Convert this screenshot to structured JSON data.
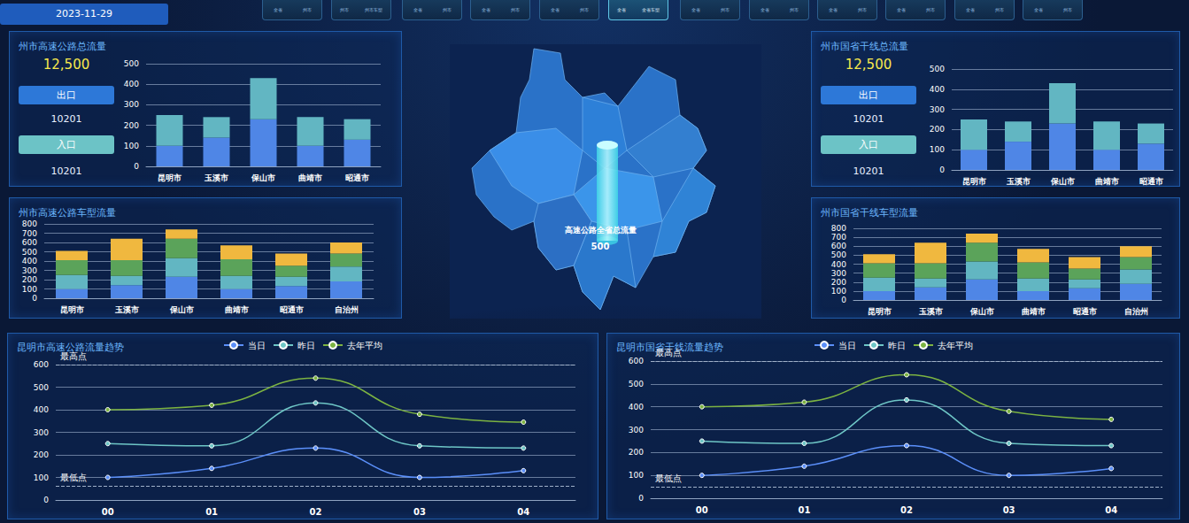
{
  "header": {
    "date": "2023-11-29",
    "tabs": [
      [
        "全省",
        "州市"
      ],
      [
        "州市",
        "州市车型"
      ],
      [
        "全省",
        "州市"
      ],
      [
        "全省",
        "州市"
      ],
      [
        "全省",
        "州市"
      ],
      [
        "全省",
        "全省车型"
      ],
      [
        "全省",
        "州市"
      ],
      [
        "全省",
        "州市"
      ],
      [
        "全省",
        "州市"
      ],
      [
        "全省",
        "州市"
      ],
      [
        "全省",
        "州市"
      ],
      [
        "全省",
        "州市"
      ]
    ],
    "active_tab": 5
  },
  "summaries": [
    {
      "total": {
        "value": 12500,
        "label": "12,500"
      },
      "items": [
        {
          "label": "出口",
          "value": 10201
        },
        {
          "label": "入口",
          "value": 10201
        }
      ]
    },
    {
      "total": {
        "value": 12500,
        "label": "12,500"
      },
      "items": [
        {
          "label": "出口",
          "value": 10201
        },
        {
          "label": "入口",
          "value": 10201
        }
      ]
    }
  ],
  "map": {
    "label": "高速公路全省总流量",
    "value": 500
  },
  "chart_data": [
    {
      "type": "bar",
      "title": "州市高速公路总流量",
      "stacked": true,
      "grid": true,
      "categories": [
        "昆明市",
        "玉溪市",
        "保山市",
        "曲靖市",
        "昭通市"
      ],
      "series": [
        {
          "color": "#4f86e6",
          "values": [
            100,
            140,
            230,
            100,
            130
          ]
        },
        {
          "color": "#62b6c2",
          "values": [
            150,
            100,
            200,
            140,
            100
          ]
        }
      ],
      "ylim": [
        0,
        500
      ],
      "yticks": [
        0,
        100,
        200,
        300,
        400,
        500
      ]
    },
    {
      "type": "bar",
      "title": "州市国省干线总流量",
      "stacked": true,
      "grid": true,
      "categories": [
        "昆明市",
        "玉溪市",
        "保山市",
        "曲靖市",
        "昭通市"
      ],
      "series": [
        {
          "color": "#4f86e6",
          "values": [
            100,
            140,
            230,
            100,
            130
          ]
        },
        {
          "color": "#62b6c2",
          "values": [
            150,
            100,
            200,
            140,
            100
          ]
        }
      ],
      "ylim": [
        0,
        500
      ],
      "yticks": [
        0,
        100,
        200,
        300,
        400,
        500
      ]
    },
    {
      "type": "bar",
      "title": "州市高速公路车型流量",
      "stacked": true,
      "grid": true,
      "categories": [
        "昆明市",
        "玉溪市",
        "保山市",
        "曲靖市",
        "昭通市",
        "自治州"
      ],
      "series": [
        {
          "color": "#4f86e6",
          "values": [
            100,
            140,
            230,
            100,
            130,
            180
          ]
        },
        {
          "color": "#62b6c2",
          "values": [
            150,
            100,
            200,
            140,
            100,
            160
          ]
        },
        {
          "color": "#5ba35a",
          "values": [
            160,
            170,
            210,
            180,
            120,
            140
          ]
        },
        {
          "color": "#f0b83f",
          "values": [
            100,
            230,
            100,
            150,
            130,
            120
          ]
        }
      ],
      "ylim": [
        0,
        800
      ],
      "yticks": [
        0,
        100,
        200,
        300,
        400,
        500,
        600,
        700,
        800
      ]
    },
    {
      "type": "bar",
      "title": "州市国省干线车型流量",
      "stacked": true,
      "grid": true,
      "categories": [
        "昆明市",
        "玉溪市",
        "保山市",
        "曲靖市",
        "昭通市",
        "自治州"
      ],
      "series": [
        {
          "color": "#4f86e6",
          "values": [
            100,
            140,
            230,
            100,
            130,
            180
          ]
        },
        {
          "color": "#62b6c2",
          "values": [
            150,
            100,
            200,
            140,
            100,
            160
          ]
        },
        {
          "color": "#5ba35a",
          "values": [
            160,
            170,
            210,
            180,
            120,
            140
          ]
        },
        {
          "color": "#f0b83f",
          "values": [
            100,
            230,
            100,
            150,
            130,
            120
          ]
        }
      ],
      "ylim": [
        0,
        800
      ],
      "yticks": [
        0,
        100,
        200,
        300,
        400,
        500,
        600,
        700,
        800
      ]
    },
    {
      "type": "line",
      "title": "昆明市高速公路流量趋势",
      "grid": true,
      "legend": "top",
      "categories": [
        "00",
        "01",
        "02",
        "03",
        "04"
      ],
      "series": [
        {
          "name": "当日",
          "color": "#5b8ff9",
          "marker": "circle",
          "line_style": "solid",
          "values": [
            100,
            140,
            230,
            100,
            130
          ]
        },
        {
          "name": "昨日",
          "color": "#6ec6c6",
          "marker": "circle",
          "line_style": "solid",
          "values": [
            250,
            240,
            430,
            240,
            230
          ]
        },
        {
          "name": "去年平均",
          "color": "#7cb342",
          "marker": "circle",
          "line_style": "solid",
          "values": [
            400,
            420,
            540,
            380,
            345
          ]
        }
      ],
      "annotations": [
        {
          "label": "最高点",
          "value": 600
        },
        {
          "label": "最低点",
          "value": 60
        }
      ],
      "ylim": [
        0,
        600
      ],
      "yticks": [
        0,
        100,
        200,
        300,
        400,
        500,
        600
      ]
    },
    {
      "type": "line",
      "title": "昆明市国省干线流量趋势",
      "grid": true,
      "legend": "top",
      "categories": [
        "00",
        "01",
        "02",
        "03",
        "04"
      ],
      "series": [
        {
          "name": "当日",
          "color": "#5b8ff9",
          "marker": "circle",
          "line_style": "solid",
          "values": [
            100,
            140,
            230,
            100,
            130
          ]
        },
        {
          "name": "昨日",
          "color": "#6ec6c6",
          "marker": "circle",
          "line_style": "solid",
          "values": [
            250,
            240,
            430,
            240,
            230
          ]
        },
        {
          "name": "去年平均",
          "color": "#7cb342",
          "marker": "circle",
          "line_style": "solid",
          "values": [
            400,
            420,
            540,
            380,
            345
          ]
        }
      ],
      "annotations": [
        {
          "label": "最高点",
          "value": 600
        },
        {
          "label": "最低点",
          "value": 50
        }
      ],
      "ylim": [
        0,
        600
      ],
      "yticks": [
        0,
        100,
        200,
        300,
        400,
        500,
        600
      ]
    }
  ]
}
